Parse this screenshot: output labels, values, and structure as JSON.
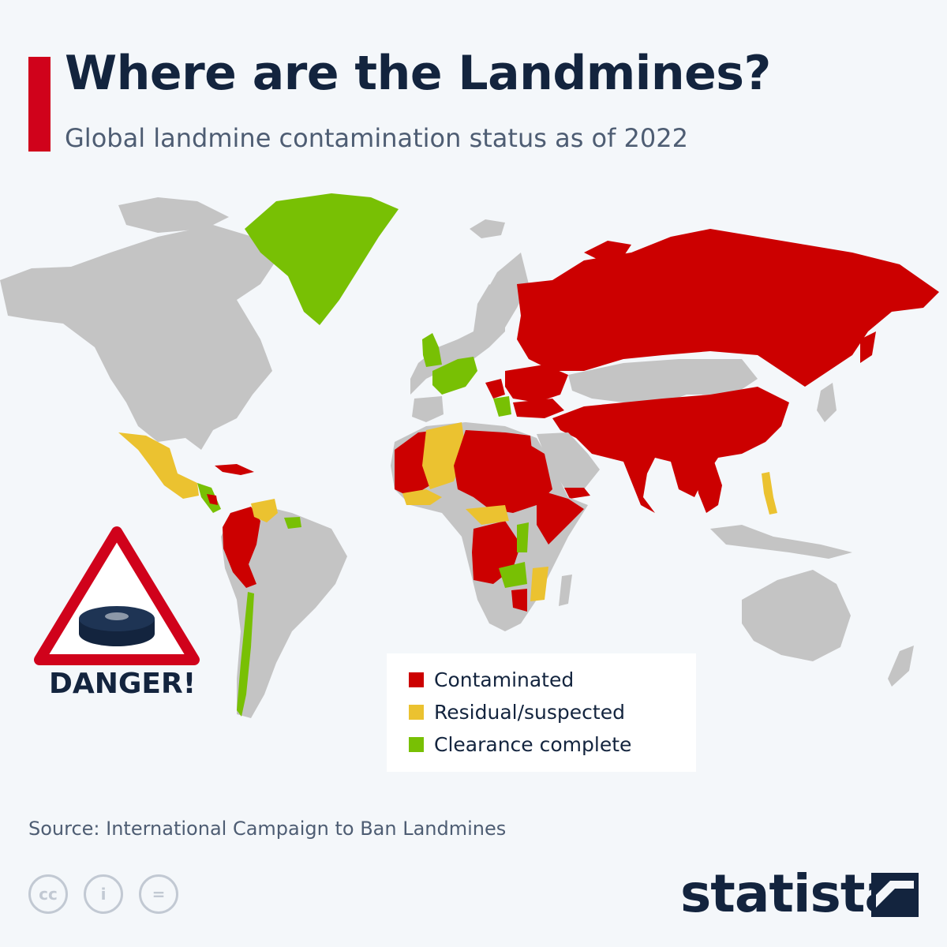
{
  "header": {
    "title": "Where are the Landmines?",
    "subtitle": "Global landmine contamination status as of 2022"
  },
  "colors": {
    "contaminated": "#cc0000",
    "residual": "#ebc230",
    "cleared": "#78c004",
    "no_data": "#c4c4c4",
    "accent": "#d0021b",
    "text_dark": "#13243e",
    "ocean": "#f4f7fa"
  },
  "legend": {
    "items": [
      {
        "label": "Contaminated",
        "color": "#cc0000"
      },
      {
        "label": "Residual/suspected",
        "color": "#ebc230"
      },
      {
        "label": "Clearance complete",
        "color": "#78c004"
      }
    ]
  },
  "danger_sign": {
    "text": "DANGER!",
    "icon": "landmine-warning-icon"
  },
  "footer": {
    "source": "Source: International Campaign to Ban Landmines",
    "license_icons": [
      "cc-icon",
      "attribution-icon",
      "noderivs-icon"
    ],
    "license_glyphs": [
      "cc",
      "i",
      "="
    ],
    "brand": "statista",
    "brand_icon": "statista-logo-icon"
  }
}
